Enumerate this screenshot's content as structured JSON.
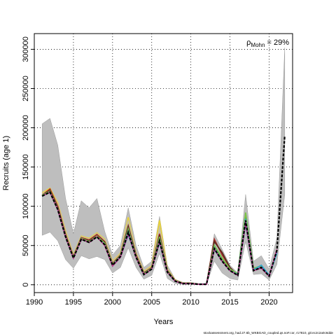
{
  "chart_data": {
    "type": "line",
    "title": "",
    "xlabel": "Years",
    "ylabel": "Recruits (age 1)",
    "xlim": [
      1990,
      2023
    ],
    "ylim": [
      -10000,
      320000
    ],
    "x_ticks": [
      1990,
      1995,
      2000,
      2005,
      2010,
      2015,
      2020
    ],
    "y_ticks": [
      0,
      50000,
      100000,
      150000,
      200000,
      250000,
      300000
    ],
    "grid": true,
    "annotation": {
      "symbol": "ρ",
      "subscript": "Mohn",
      "text": " = 29%"
    },
    "footer": "stockassessment.org, had.27.6b_WKBGAD_coupled.qs.noF.cor, r17810, git:ec2c2a0c6dde",
    "band": {
      "name": "",
      "color": "#bebebe",
      "x": [
        1991,
        1992,
        1993,
        1994,
        1995,
        1996,
        1997,
        1998,
        1999,
        2000,
        2001,
        2002,
        2003,
        2004,
        2005,
        2006,
        2007,
        2008,
        2009,
        2010,
        2011,
        2012,
        2013,
        2014,
        2015,
        2016,
        2017,
        2018,
        2019,
        2020,
        2021,
        2022
      ],
      "lower": [
        63000,
        67000,
        56000,
        32000,
        21000,
        37000,
        33000,
        36000,
        32000,
        15000,
        22000,
        47000,
        22000,
        7000,
        12000,
        40000,
        8000,
        1500,
        500,
        500,
        0,
        0,
        30000,
        15000,
        8000,
        6000,
        55000,
        13000,
        14000,
        6000,
        26000,
        115000
      ],
      "upper": [
        205000,
        212000,
        178000,
        110000,
        65000,
        107000,
        98000,
        110000,
        68000,
        38000,
        50000,
        98000,
        50000,
        22000,
        30000,
        87000,
        25000,
        7000,
        3000,
        3000,
        1500,
        1500,
        65000,
        45000,
        25000,
        15000,
        115000,
        30000,
        37000,
        20000,
        60000,
        302000
      ]
    },
    "series": [
      {
        "color": "#e8d23a",
        "values": [
          117000,
          123000,
          104000,
          68000,
          38000,
          62000,
          59000,
          66000,
          58000,
          30000,
          40000,
          86000,
          40000,
          17000,
          24000,
          82000,
          20000,
          6000,
          2000,
          2000,
          800,
          800
        ]
      },
      {
        "color": "#c9c2a0",
        "values": [
          116000,
          121000,
          102000,
          66000,
          37000,
          61000,
          58000,
          65000,
          57000,
          29000,
          39000,
          82000,
          39000,
          16000,
          23000,
          73000,
          19000,
          5500,
          1800,
          1800,
          700,
          700
        ]
      },
      {
        "color": "#a62d2a",
        "values": [
          114000,
          122000,
          100000,
          64000,
          36000,
          60000,
          57000,
          64000,
          55000,
          27000,
          38000,
          75000,
          38000,
          15000,
          22000,
          65000,
          18000,
          5000,
          1800,
          1800,
          700,
          700,
          58000,
          38000,
          22000,
          12000
        ]
      },
      {
        "color": "#5b2c1e",
        "values": [
          114000,
          120000,
          98000,
          63000,
          35000,
          59000,
          56000,
          62000,
          54000,
          26000,
          37000,
          74000,
          37000,
          15000,
          21000,
          63000,
          18000,
          5000,
          1700,
          1700,
          600,
          600,
          55000,
          41000,
          22000,
          12000
        ]
      },
      {
        "color": "#2a7a3e",
        "values": [
          114000,
          119000,
          97000,
          62000,
          35000,
          59000,
          55000,
          62000,
          52000,
          25000,
          36000,
          70000,
          36000,
          14000,
          21000,
          60000,
          17000,
          4800,
          1600,
          1600,
          600,
          600,
          50000,
          33000,
          20000,
          14000,
          90000,
          20000
        ]
      },
      {
        "color": "#7cc24a",
        "values": [
          114000,
          119000,
          97000,
          62000,
          35000,
          59000,
          55000,
          62000,
          53000,
          26000,
          37000,
          71000,
          36000,
          14000,
          21000,
          61000,
          17000,
          4800,
          1600,
          1600,
          600,
          600,
          50000,
          34000,
          20000,
          14000,
          92000,
          21000,
          24000
        ]
      },
      {
        "color": "#3b5fa8",
        "values": [
          113000,
          118000,
          96000,
          61000,
          34000,
          58000,
          54000,
          61000,
          51000,
          24000,
          35000,
          64000,
          35000,
          13000,
          20000,
          54000,
          16000,
          4500,
          1500,
          1500,
          600,
          600,
          45000,
          30000,
          18000,
          12000,
          78000,
          18000,
          22000,
          11000,
          42000
        ]
      },
      {
        "color": "#33a6c9",
        "values": [
          113000,
          118000,
          96000,
          61000,
          34000,
          58000,
          54000,
          61000,
          51000,
          25000,
          36000,
          68000,
          35000,
          13000,
          20000,
          57000,
          16000,
          4500,
          1500,
          1500,
          600,
          600,
          47000,
          30000,
          18000,
          13000,
          84000,
          19000,
          25000,
          12000,
          40000
        ]
      },
      {
        "color": "#c03a8a",
        "values": [
          113000,
          118000,
          96000,
          61000,
          34000,
          58000,
          54000,
          61000,
          50000,
          24000,
          35000,
          66000,
          35000,
          13000,
          20000,
          56000,
          16000,
          4500,
          1500,
          1500,
          600,
          600,
          46000,
          30000,
          18000,
          12000,
          80000,
          18000,
          21000,
          11000,
          45000
        ]
      },
      {
        "color": "#000000",
        "dashed": true,
        "values": [
          113000,
          118000,
          96000,
          61000,
          34000,
          58000,
          54000,
          61000,
          51000,
          25000,
          36000,
          67000,
          35000,
          13000,
          20000,
          56000,
          16000,
          4500,
          1500,
          1500,
          600,
          600,
          46000,
          30000,
          18000,
          12000,
          82000,
          18000,
          22000,
          11000,
          44000,
          190000
        ]
      }
    ]
  }
}
